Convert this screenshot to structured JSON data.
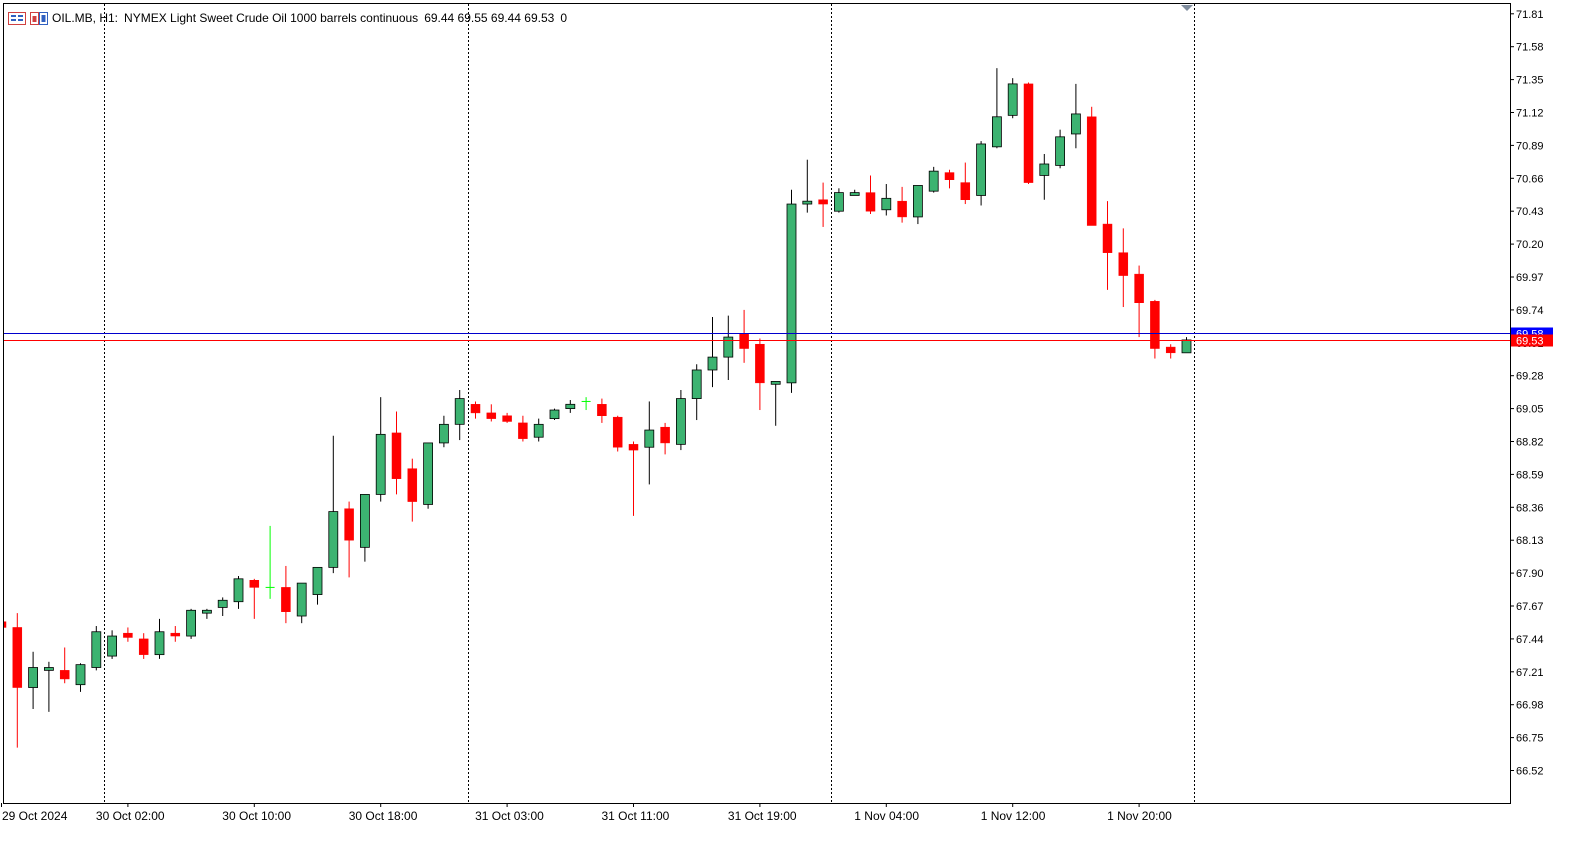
{
  "header": {
    "symbol": "OIL.MB, H1:",
    "description": "NYMEX Light Sweet Crude Oil 1000 barrels continuous",
    "ohlc": "69.44 69.55 69.44 69.53",
    "volume": "0",
    "icons": [
      "chart-window-icon",
      "trade-panel-icon"
    ]
  },
  "colors": {
    "up": "#3cb371",
    "down": "#ff0000",
    "doji": "#00ff00",
    "grid": "#000000",
    "bid_line": "#0000cd",
    "ask_line": "#ff0000",
    "bid_label_bg": "#0000ff",
    "ask_label_bg": "#ff0000"
  },
  "chart_data": {
    "type": "candlestick",
    "symbol": "OIL.MB",
    "timeframe": "H1",
    "y_ticks": [
      "71.81",
      "71.58",
      "71.35",
      "71.12",
      "70.89",
      "70.66",
      "70.43",
      "70.20",
      "69.97",
      "69.74",
      "69.51",
      "69.28",
      "69.05",
      "68.82",
      "68.59",
      "68.36",
      "68.13",
      "67.90",
      "67.67",
      "67.44",
      "67.21",
      "66.98",
      "66.75",
      "66.52"
    ],
    "ylim": [
      66.28,
      71.85
    ],
    "x_labels": [
      "29 Oct 2024",
      "30 Oct 02:00",
      "30 Oct 10:00",
      "30 Oct 18:00",
      "31 Oct 03:00",
      "31 Oct 11:00",
      "31 Oct 19:00",
      "1 Nov 04:00",
      "1 Nov 12:00",
      "1 Nov 20:00"
    ],
    "x_label_bar_index": [
      0,
      8,
      16,
      24,
      32,
      40,
      48,
      56,
      64,
      72
    ],
    "session_separators_bar_index": [
      6.5,
      29.5,
      52.5,
      75.5
    ],
    "price_lines": [
      {
        "name": "bid",
        "value": 69.58,
        "label": "69.58"
      },
      {
        "name": "ask",
        "value": 69.53,
        "label": "69.53"
      }
    ],
    "candles": [
      [
        67.56,
        67.6,
        67.5,
        67.52
      ],
      [
        67.52,
        67.62,
        66.68,
        67.1
      ],
      [
        67.1,
        67.35,
        66.95,
        67.24
      ],
      [
        67.22,
        67.28,
        66.93,
        67.24
      ],
      [
        67.22,
        67.38,
        67.13,
        67.16
      ],
      [
        67.12,
        67.27,
        67.07,
        67.26
      ],
      [
        67.24,
        67.53,
        67.22,
        67.49
      ],
      [
        67.32,
        67.5,
        67.3,
        67.46
      ],
      [
        67.48,
        67.52,
        67.42,
        67.45
      ],
      [
        67.44,
        67.48,
        67.3,
        67.33
      ],
      [
        67.33,
        67.58,
        67.3,
        67.49
      ],
      [
        67.48,
        67.53,
        67.42,
        67.46
      ],
      [
        67.46,
        67.65,
        67.44,
        67.64
      ],
      [
        67.62,
        67.65,
        67.58,
        67.64
      ],
      [
        67.66,
        67.73,
        67.6,
        67.71
      ],
      [
        67.7,
        67.88,
        67.65,
        67.86
      ],
      [
        67.85,
        67.86,
        67.58,
        67.8
      ],
      [
        67.79,
        68.23,
        67.72,
        67.8
      ],
      [
        67.8,
        67.95,
        67.55,
        67.63
      ],
      [
        67.6,
        67.82,
        67.55,
        67.83
      ],
      [
        67.75,
        67.94,
        67.68,
        67.94
      ],
      [
        67.94,
        68.86,
        67.9,
        68.33
      ],
      [
        68.35,
        68.4,
        67.87,
        68.13
      ],
      [
        68.08,
        68.45,
        67.98,
        68.45
      ],
      [
        68.45,
        69.13,
        68.4,
        68.87
      ],
      [
        68.88,
        69.03,
        68.45,
        68.56
      ],
      [
        68.63,
        68.7,
        68.26,
        68.4
      ],
      [
        68.38,
        68.81,
        68.35,
        68.81
      ],
      [
        68.81,
        69.0,
        68.78,
        68.94
      ],
      [
        68.94,
        69.18,
        68.83,
        69.12
      ],
      [
        69.08,
        69.1,
        68.98,
        69.02
      ],
      [
        69.02,
        69.08,
        68.96,
        68.98
      ],
      [
        69.0,
        69.02,
        68.95,
        68.96
      ],
      [
        68.95,
        69.0,
        68.82,
        68.84
      ],
      [
        68.85,
        68.98,
        68.82,
        68.94
      ],
      [
        68.98,
        69.05,
        68.97,
        69.04
      ],
      [
        69.05,
        69.11,
        69.02,
        69.08
      ],
      [
        69.1,
        69.13,
        69.04,
        69.1
      ],
      [
        69.08,
        69.12,
        68.95,
        69.0
      ],
      [
        68.99,
        69.0,
        68.75,
        68.78
      ],
      [
        68.8,
        68.82,
        68.3,
        68.76
      ],
      [
        68.78,
        69.1,
        68.52,
        68.9
      ],
      [
        68.92,
        68.95,
        68.73,
        68.81
      ],
      [
        68.8,
        69.18,
        68.76,
        69.12
      ],
      [
        69.12,
        69.36,
        68.97,
        69.32
      ],
      [
        69.32,
        69.69,
        69.2,
        69.41
      ],
      [
        69.41,
        69.7,
        69.25,
        69.55
      ],
      [
        69.57,
        69.74,
        69.37,
        69.47
      ],
      [
        69.5,
        69.54,
        69.04,
        69.23
      ],
      [
        69.22,
        69.24,
        68.93,
        69.24
      ],
      [
        69.23,
        70.58,
        69.16,
        70.48
      ],
      [
        70.48,
        70.79,
        70.42,
        70.5
      ],
      [
        70.51,
        70.63,
        70.32,
        70.48
      ],
      [
        70.43,
        70.59,
        70.42,
        70.56
      ],
      [
        70.54,
        70.58,
        70.55,
        70.56
      ],
      [
        70.56,
        70.68,
        70.41,
        70.43
      ],
      [
        70.44,
        70.62,
        70.4,
        70.52
      ],
      [
        70.5,
        70.6,
        70.35,
        70.39
      ],
      [
        70.39,
        70.61,
        70.34,
        70.61
      ],
      [
        70.57,
        70.74,
        70.56,
        70.71
      ],
      [
        70.7,
        70.72,
        70.59,
        70.65
      ],
      [
        70.63,
        70.77,
        70.48,
        70.51
      ],
      [
        70.54,
        70.92,
        70.47,
        70.9
      ],
      [
        70.88,
        71.43,
        70.87,
        71.09
      ],
      [
        71.1,
        71.36,
        71.08,
        71.32
      ],
      [
        71.32,
        71.33,
        70.62,
        70.63
      ],
      [
        70.68,
        70.83,
        70.51,
        70.76
      ],
      [
        70.75,
        71.0,
        70.73,
        70.95
      ],
      [
        70.97,
        71.32,
        70.87,
        71.11
      ],
      [
        71.09,
        71.16,
        70.36,
        70.33
      ],
      [
        70.34,
        70.5,
        69.88,
        70.14
      ],
      [
        70.14,
        70.31,
        69.76,
        69.98
      ],
      [
        69.99,
        70.05,
        69.55,
        69.79
      ],
      [
        69.8,
        69.81,
        69.4,
        69.47
      ],
      [
        69.48,
        69.5,
        69.4,
        69.44
      ],
      [
        69.44,
        69.55,
        69.44,
        69.53
      ]
    ]
  }
}
